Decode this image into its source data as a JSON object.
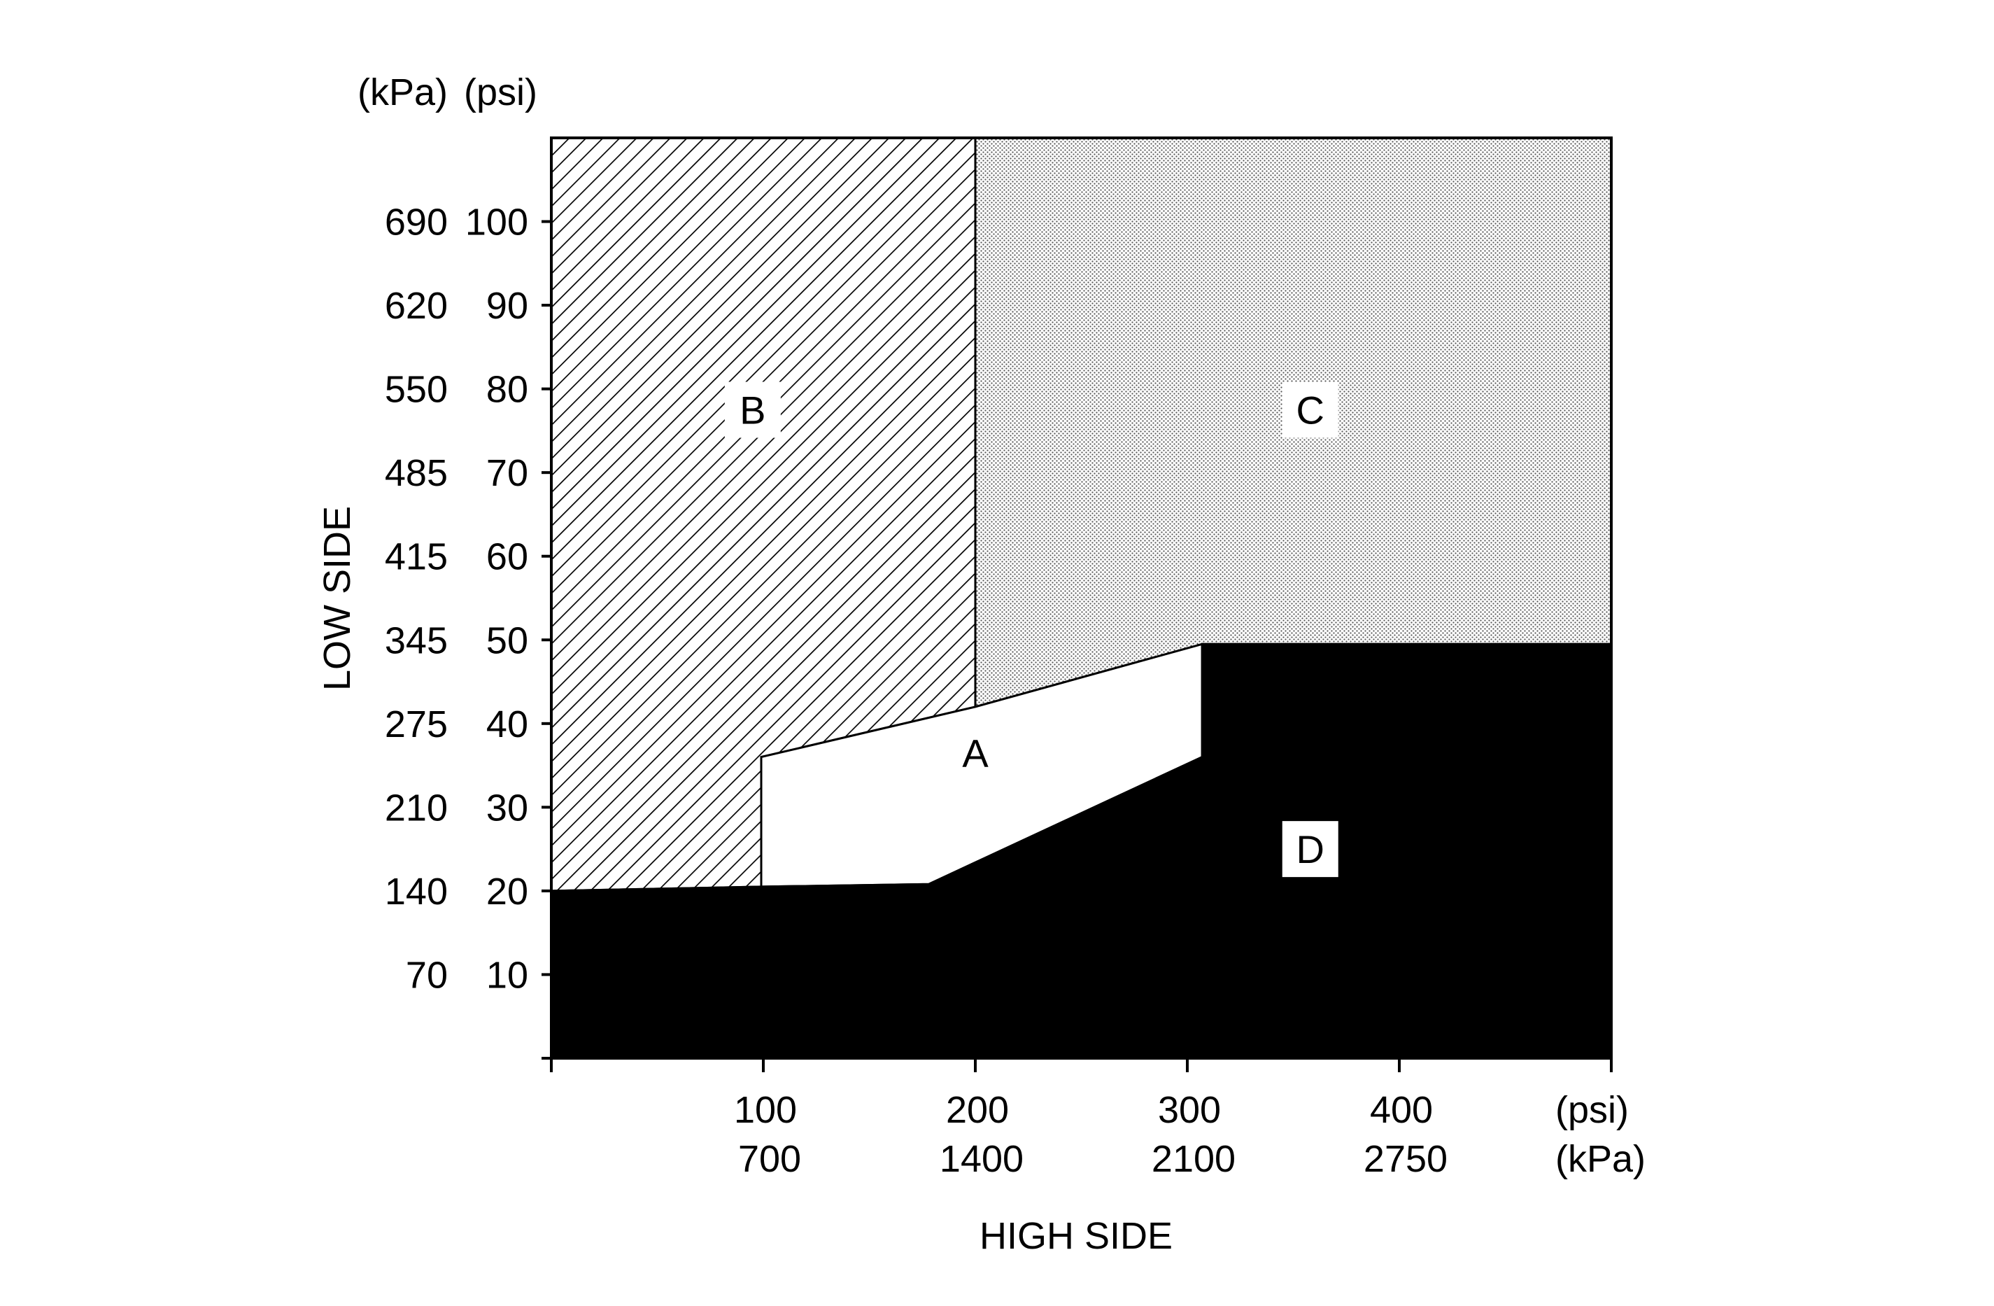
{
  "chart_data": {
    "type": "area",
    "title": "",
    "xlabel": "HIGH SIDE",
    "ylabel": "LOW SIDE",
    "x_unit_labels": {
      "primary": "(psi)",
      "secondary": "(kPa)"
    },
    "y_unit_labels": {
      "secondary": "(kPa)",
      "primary": "(psi)"
    },
    "xlim": [
      0,
      500
    ],
    "ylim": [
      0,
      110
    ],
    "x_ticks": [
      {
        "value": 100,
        "psi": "100",
        "kpa": "700"
      },
      {
        "value": 200,
        "psi": "200",
        "kpa": "1400"
      },
      {
        "value": 300,
        "psi": "300",
        "kpa": "2100"
      },
      {
        "value": 400,
        "psi": "400",
        "kpa": "2750"
      }
    ],
    "y_ticks": [
      {
        "value": 10,
        "psi": "10",
        "kpa": "70"
      },
      {
        "value": 20,
        "psi": "20",
        "kpa": "140"
      },
      {
        "value": 30,
        "psi": "30",
        "kpa": "210"
      },
      {
        "value": 40,
        "psi": "40",
        "kpa": "275"
      },
      {
        "value": 50,
        "psi": "50",
        "kpa": "345"
      },
      {
        "value": 60,
        "psi": "60",
        "kpa": "415"
      },
      {
        "value": 70,
        "psi": "70",
        "kpa": "485"
      },
      {
        "value": 80,
        "psi": "80",
        "kpa": "550"
      },
      {
        "value": 90,
        "psi": "90",
        "kpa": "620"
      },
      {
        "value": 100,
        "psi": "100",
        "kpa": "690"
      }
    ],
    "regions": [
      {
        "id": "B",
        "label": "B",
        "fill": "hatch",
        "polygon": [
          [
            0,
            20
          ],
          [
            99,
            20.5
          ],
          [
            99,
            36
          ],
          [
            200,
            42
          ],
          [
            200,
            110
          ],
          [
            0,
            110
          ]
        ],
        "label_at": [
          95,
          77.5
        ]
      },
      {
        "id": "C",
        "label": "C",
        "fill": "dots",
        "polygon": [
          [
            200,
            42
          ],
          [
            307,
            49.5
          ],
          [
            500,
            49.5
          ],
          [
            500,
            110
          ],
          [
            200,
            110
          ]
        ],
        "label_at": [
          358,
          77.5
        ]
      },
      {
        "id": "A",
        "label": "A",
        "fill": "white",
        "polygon": [
          [
            99,
            20.5
          ],
          [
            178,
            20.8
          ],
          [
            307,
            36
          ],
          [
            307,
            49.5
          ],
          [
            200,
            42
          ],
          [
            99,
            36
          ]
        ],
        "label_at": [
          200,
          36.5
        ]
      },
      {
        "id": "D",
        "label": "D",
        "fill": "black",
        "polygon": [
          [
            0,
            0
          ],
          [
            500,
            0
          ],
          [
            500,
            49.5
          ],
          [
            307,
            49.5
          ],
          [
            307,
            36
          ],
          [
            178,
            20.8
          ],
          [
            99,
            20.5
          ],
          [
            0,
            20
          ]
        ],
        "label_at": [
          358,
          25
        ]
      }
    ],
    "colors": {
      "D": "#000000",
      "A": "#ffffff",
      "B_hatch": "#000000",
      "C_dots": "#000000"
    },
    "grid": false,
    "legend": "none"
  }
}
